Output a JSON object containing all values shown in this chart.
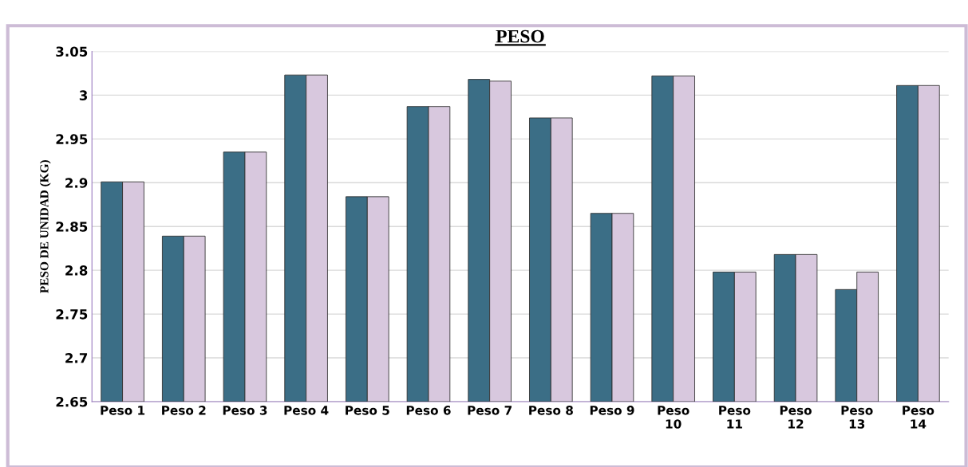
{
  "chart_data": {
    "type": "bar",
    "title": "PESO",
    "ylabel": "PESO DE UNIDAD (KG)",
    "categories": [
      "Peso 1",
      "Peso 2",
      "Peso 3",
      "Peso 4",
      "Peso 5",
      "Peso 6",
      "Peso 7",
      "Peso 8",
      "Peso 9",
      "Peso\n10",
      "Peso\n11",
      "Peso\n12",
      "Peso\n13",
      "Peso\n14"
    ],
    "series": [
      {
        "color": "#3b6e86",
        "values": [
          2.901,
          2.839,
          2.935,
          3.023,
          2.884,
          2.987,
          3.018,
          2.974,
          2.865,
          3.022,
          2.798,
          2.818,
          2.778,
          3.011
        ]
      },
      {
        "color": "#d8c8de",
        "values": [
          2.901,
          2.839,
          2.935,
          3.023,
          2.884,
          2.987,
          3.016,
          2.974,
          2.865,
          3.022,
          2.798,
          2.818,
          2.798,
          3.011
        ]
      }
    ],
    "ylim": [
      2.65,
      3.05
    ],
    "yticks": [
      2.65,
      2.7,
      2.75,
      2.8,
      2.85,
      2.9,
      2.95,
      3,
      3.05
    ],
    "grid": "y"
  }
}
